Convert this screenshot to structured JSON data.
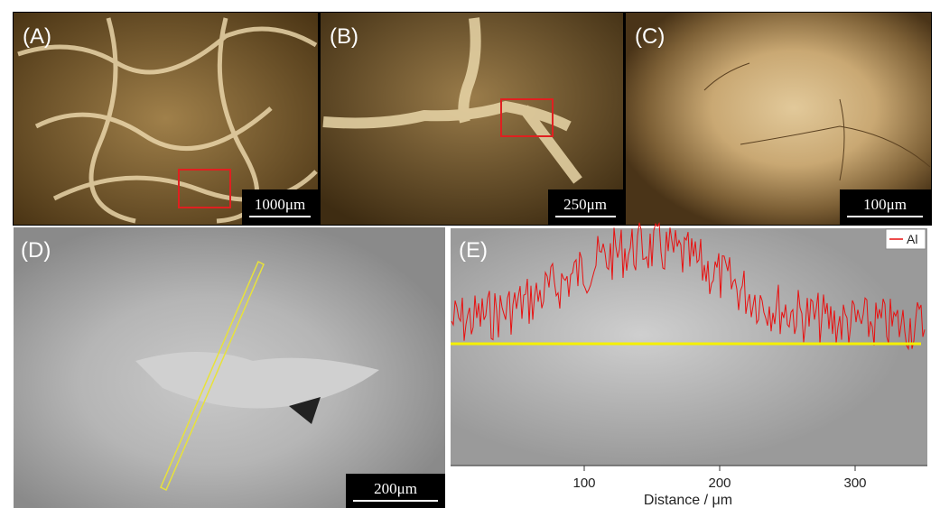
{
  "panels": [
    {
      "label": "(A)",
      "scale_bar": "1000μm"
    },
    {
      "label": "(B)",
      "scale_bar": "250μm"
    },
    {
      "label": "(C)",
      "scale_bar": "100μm"
    },
    {
      "label": "(D)",
      "scale_bar": "200μm"
    },
    {
      "label": "(E)",
      "legend": "Al",
      "x_axis": {
        "ticks": [
          100,
          200,
          300
        ],
        "label": "Distance / μm"
      }
    }
  ]
}
